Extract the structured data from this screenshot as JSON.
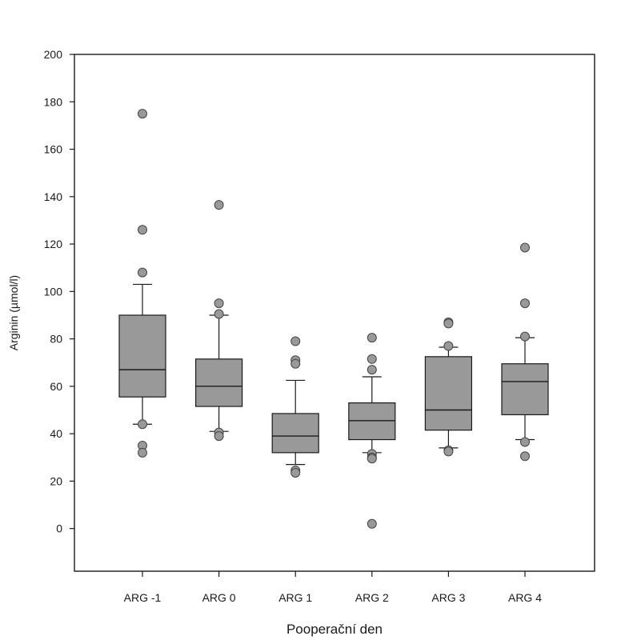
{
  "chart_data": {
    "type": "box",
    "xlabel": "Pooperační den",
    "ylabel": "Arginin (µmol/l)",
    "ylim": [
      -18,
      200
    ],
    "yticks": [
      0,
      20,
      40,
      60,
      80,
      100,
      120,
      140,
      160,
      180,
      200
    ],
    "categories": [
      "ARG -1",
      "ARG 0",
      "ARG 1",
      "ARG 2",
      "ARG 3",
      "ARG 4"
    ],
    "boxes": [
      {
        "q1": 55.5,
        "median": 67,
        "q3": 90,
        "whisker_low": 44,
        "whisker_high": 103,
        "outliers": [
          175,
          126,
          108,
          44,
          35,
          32
        ]
      },
      {
        "q1": 51.5,
        "median": 60,
        "q3": 71.5,
        "whisker_low": 41,
        "whisker_high": 90,
        "outliers": [
          136.5,
          95,
          90.5,
          40.5,
          39
        ]
      },
      {
        "q1": 32,
        "median": 39,
        "q3": 48.5,
        "whisker_low": 27,
        "whisker_high": 62.5,
        "outliers": [
          79,
          71,
          69.5,
          24.5,
          23.5
        ]
      },
      {
        "q1": 37.5,
        "median": 45.5,
        "q3": 53,
        "whisker_low": 32,
        "whisker_high": 64,
        "outliers": [
          80.5,
          71.5,
          67,
          31.5,
          30,
          29.5,
          2
        ]
      },
      {
        "q1": 41.5,
        "median": 50,
        "q3": 72.5,
        "whisker_low": 34,
        "whisker_high": 76.5,
        "outliers": [
          87,
          86.5,
          77,
          33,
          32.5
        ]
      },
      {
        "q1": 48,
        "median": 62,
        "q3": 69.5,
        "whisker_low": 37.5,
        "whisker_high": 80.5,
        "outliers": [
          118.5,
          95,
          81,
          36.5,
          30.5
        ]
      }
    ],
    "colors": {
      "box_fill": "#999999",
      "outlier_fill": "#999999",
      "stroke": "#1a1a1a"
    }
  }
}
